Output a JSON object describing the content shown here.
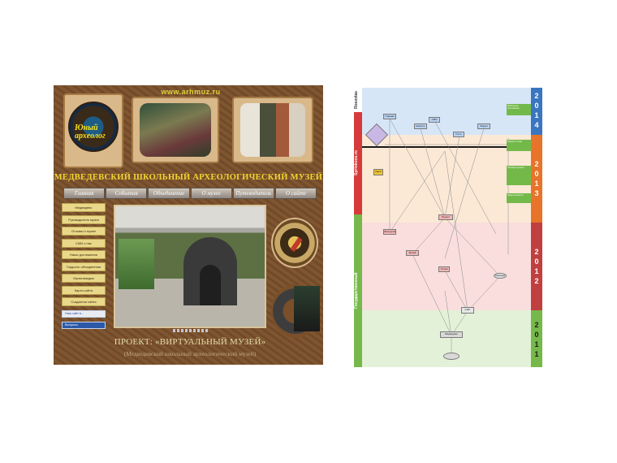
{
  "site": {
    "url": "www.arhmuz.ru",
    "logo_text": [
      "Юный",
      "археолог"
    ],
    "title": "МЕДВЕДЕВСКИЙ ШКОЛЬНЫЙ АРХЕОЛОГИЧЕСКИЙ МУЗЕЙ",
    "nav": [
      "Главная",
      "События",
      "Объединение",
      "О музее",
      "Путеводитель",
      "О сайте"
    ],
    "sidebar": [
      "Медведево",
      "Руководитель музея",
      "Отзывы о музее",
      "СМИ о нас",
      "Наши достижения",
      "Гордость объединения",
      "Мультимедиа",
      "Карта сайта",
      "Создатели сайта"
    ],
    "sidebar_blue": [
      "Наш сайт в...",
      "Вопросы"
    ],
    "project_title": "ПРОЕКТ: «ВИРТУАЛЬНЫЙ МУЗЕЙ»",
    "project_sub": "(Медведевский школьный археологический музей)"
  },
  "diagram": {
    "left_labels": [
      "Rossvlas",
      "Sprinkoos.ru",
      "Государственный"
    ],
    "left_colors": [
      "#ffffff",
      "#d73a3a",
      "#76b84a"
    ],
    "right_colors": [
      "#3a76c0",
      "#e7742a",
      "#c04040",
      "#76b84a"
    ],
    "right_digits": [
      [
        "2",
        "0",
        "1",
        "4"
      ],
      [
        "2",
        "0",
        "1",
        "3"
      ],
      [
        "2",
        "0",
        "1",
        "2"
      ],
      [
        "2",
        "0",
        "1",
        "1"
      ]
    ],
    "band_colors": [
      "#d7e6f7",
      "#fbe9d6",
      "#f9dedd",
      "#e3f1d8"
    ],
    "notes": [
      "Мобильное приложение",
      "Форум по теме",
      "Эпизоды проекта",
      "Защита проекта"
    ],
    "nodes": [
      "Главная",
      "Новость",
      "СМИ",
      "Гость",
      "Форум",
      "Идея",
      "Проект",
      "Экскурсия",
      "Музей",
      "Отзыв",
      "Команда",
      "Сайт",
      "Медведево"
    ]
  }
}
